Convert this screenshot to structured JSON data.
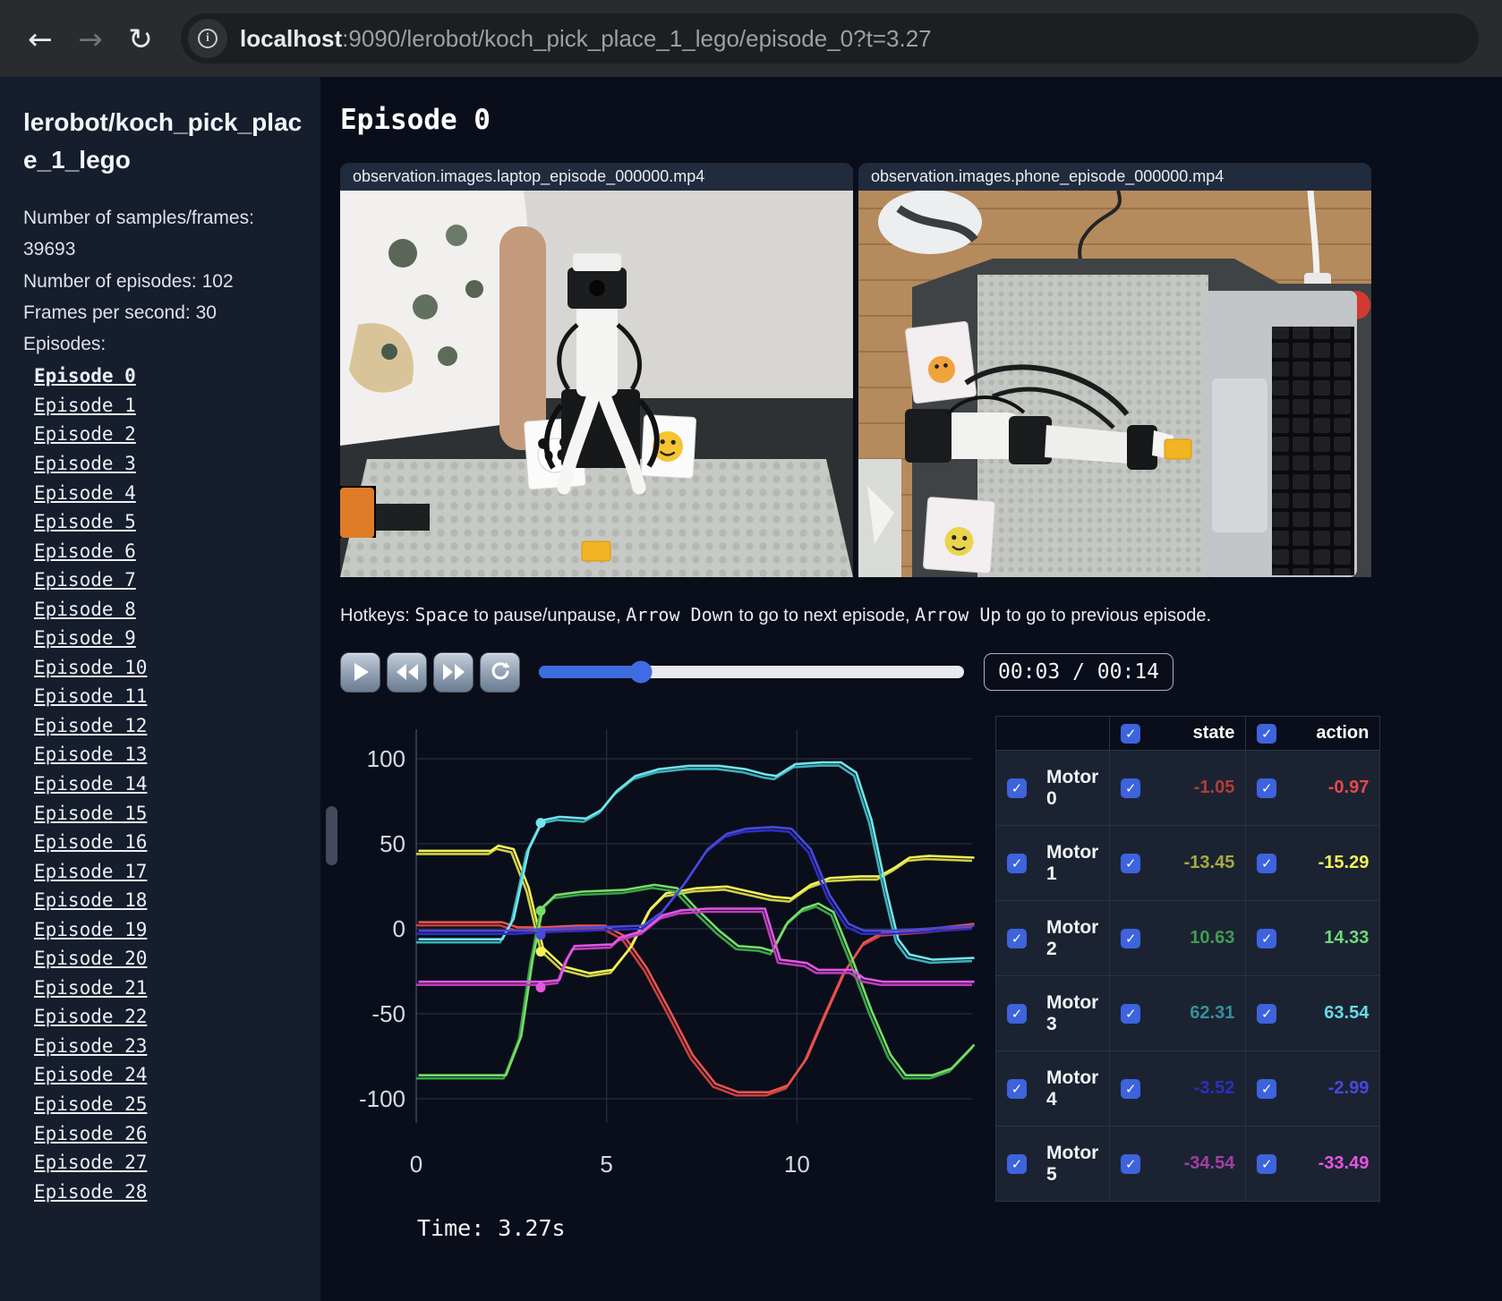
{
  "browser": {
    "url_host": "localhost",
    "url_rest": ":9090/lerobot/koch_pick_place_1_lego/episode_0?t=3.27",
    "back_glyph": "←",
    "forward_glyph": "→",
    "reload_glyph": "↻",
    "info_glyph": "i"
  },
  "sidebar": {
    "title": "lerobot/koch_pick_place_1_lego",
    "stats": [
      "Number of samples/frames: 39693",
      "Number of episodes: 102",
      "Frames per second: 30"
    ],
    "episodes_label": "Episodes:",
    "active_episode": "Episode 0",
    "episodes": [
      "Episode 0",
      "Episode 1",
      "Episode 2",
      "Episode 3",
      "Episode 4",
      "Episode 5",
      "Episode 6",
      "Episode 7",
      "Episode 8",
      "Episode 9",
      "Episode 10",
      "Episode 11",
      "Episode 12",
      "Episode 13",
      "Episode 14",
      "Episode 15",
      "Episode 16",
      "Episode 17",
      "Episode 18",
      "Episode 19",
      "Episode 20",
      "Episode 21",
      "Episode 22",
      "Episode 23",
      "Episode 24",
      "Episode 25",
      "Episode 26",
      "Episode 27",
      "Episode 28"
    ]
  },
  "main": {
    "title": "Episode 0",
    "videos": [
      {
        "label": "observation.images.laptop_episode_000000.mp4"
      },
      {
        "label": "observation.images.phone_episode_000000.mp4"
      }
    ],
    "hotkeys": {
      "prefix": "Hotkeys: ",
      "space": "Space",
      "mid1": " to pause/unpause, ",
      "arrow_down": "Arrow Down",
      "mid2": " to go to next episode, ",
      "arrow_up": "Arrow Up",
      "suffix": " to go to previous episode."
    },
    "controls": {
      "time_display": "00:03 / 00:14",
      "progress_pct": 24
    },
    "time_label": "Time: 3.27s"
  },
  "motor_table": {
    "columns": [
      "state",
      "action"
    ],
    "rows": [
      {
        "name": "Motor 0",
        "state": "-1.05",
        "action": "-0.97",
        "state_color": "#b13d3a",
        "action_color": "#e5484d"
      },
      {
        "name": "Motor 1",
        "state": "-13.45",
        "action": "-15.29",
        "state_color": "#aaaa3f",
        "action_color": "#f2f258"
      },
      {
        "name": "Motor 2",
        "state": "10.63",
        "action": "14.33",
        "state_color": "#3f9e4d",
        "action_color": "#6fd97a"
      },
      {
        "name": "Motor 3",
        "state": "62.31",
        "action": "63.54",
        "state_color": "#35919b",
        "action_color": "#65dbe4"
      },
      {
        "name": "Motor 4",
        "state": "-3.52",
        "action": "-2.99",
        "state_color": "#2e2ebe",
        "action_color": "#4848dd"
      },
      {
        "name": "Motor 5",
        "state": "-34.54",
        "action": "-33.49",
        "state_color": "#a23fa2",
        "action_color": "#e455e4"
      }
    ]
  },
  "chart_data": {
    "type": "line",
    "title": "",
    "xlabel": "",
    "ylabel": "",
    "x_ticks": [
      0,
      5,
      10
    ],
    "y_ticks": [
      100,
      50,
      0,
      -50,
      -100
    ],
    "xlim": [
      0,
      14.6
    ],
    "ylim": [
      -115,
      115
    ],
    "grid": true,
    "current_time": 3.27,
    "legend_position": "none",
    "note": "Each motor has two closely-tracking lines: state (dim) and action (bright). Dot marks value at current time 3.27s.",
    "series": [
      {
        "name": "Motor 0",
        "state_color": "#c9403c",
        "action_color": "#e8534e",
        "dot": [
          3.27,
          -1.05
        ],
        "points": [
          [
            0,
            2
          ],
          [
            2.2,
            2
          ],
          [
            2.6,
            -1
          ],
          [
            3.27,
            -1
          ],
          [
            4.2,
            0
          ],
          [
            4.9,
            0
          ],
          [
            5.4,
            -6
          ],
          [
            6.0,
            -25
          ],
          [
            6.6,
            -50
          ],
          [
            7.2,
            -76
          ],
          [
            7.8,
            -93
          ],
          [
            8.4,
            -98
          ],
          [
            9.2,
            -98
          ],
          [
            9.7,
            -94
          ],
          [
            10.2,
            -78
          ],
          [
            10.7,
            -52
          ],
          [
            11.2,
            -27
          ],
          [
            11.7,
            -10
          ],
          [
            12.2,
            -4
          ],
          [
            12.8,
            -3
          ],
          [
            13.4,
            -2
          ],
          [
            14.6,
            1
          ]
        ]
      },
      {
        "name": "Motor 1",
        "state_color": "#cfcf45",
        "action_color": "#f2f258",
        "dot": [
          3.27,
          -13.45
        ],
        "points": [
          [
            0,
            44
          ],
          [
            1.9,
            44
          ],
          [
            2.1,
            47
          ],
          [
            2.5,
            45
          ],
          [
            2.9,
            22
          ],
          [
            3.27,
            -13
          ],
          [
            3.8,
            -24
          ],
          [
            4.5,
            -28
          ],
          [
            5.1,
            -26
          ],
          [
            5.6,
            -12
          ],
          [
            6.1,
            10
          ],
          [
            6.5,
            19
          ],
          [
            7.3,
            22
          ],
          [
            8.1,
            23
          ],
          [
            8.7,
            20
          ],
          [
            9.3,
            17
          ],
          [
            9.8,
            16
          ],
          [
            10.3,
            24
          ],
          [
            10.8,
            28
          ],
          [
            11.6,
            29
          ],
          [
            12.1,
            29
          ],
          [
            12.5,
            34
          ],
          [
            12.9,
            40
          ],
          [
            13.4,
            41
          ],
          [
            14.6,
            40
          ]
        ]
      },
      {
        "name": "Motor 2",
        "state_color": "#3aa24a",
        "action_color": "#77dd66",
        "dot": [
          3.27,
          10.63
        ],
        "points": [
          [
            0,
            -88
          ],
          [
            2.3,
            -88
          ],
          [
            2.7,
            -65
          ],
          [
            3.0,
            -20
          ],
          [
            3.27,
            11
          ],
          [
            3.6,
            18
          ],
          [
            4.3,
            20
          ],
          [
            5.4,
            21
          ],
          [
            6.2,
            24
          ],
          [
            6.8,
            22
          ],
          [
            7.3,
            10
          ],
          [
            7.9,
            -3
          ],
          [
            8.4,
            -12
          ],
          [
            9.0,
            -13
          ],
          [
            9.3,
            -15
          ],
          [
            9.7,
            2
          ],
          [
            10.1,
            10
          ],
          [
            10.5,
            13
          ],
          [
            10.9,
            8
          ],
          [
            11.4,
            -20
          ],
          [
            11.9,
            -50
          ],
          [
            12.4,
            -76
          ],
          [
            12.8,
            -88
          ],
          [
            13.5,
            -88
          ],
          [
            14.0,
            -84
          ],
          [
            14.6,
            -70
          ]
        ]
      },
      {
        "name": "Motor 3",
        "state_color": "#3ab0bb",
        "action_color": "#72e4ec",
        "dot": [
          3.27,
          62.31
        ],
        "points": [
          [
            0,
            -8
          ],
          [
            2.2,
            -8
          ],
          [
            2.5,
            4
          ],
          [
            2.9,
            45
          ],
          [
            3.27,
            62
          ],
          [
            3.7,
            64
          ],
          [
            4.4,
            63
          ],
          [
            4.8,
            68
          ],
          [
            5.2,
            79
          ],
          [
            5.7,
            88
          ],
          [
            6.3,
            92
          ],
          [
            7.1,
            94
          ],
          [
            7.9,
            94
          ],
          [
            8.6,
            92
          ],
          [
            9.1,
            89
          ],
          [
            9.4,
            88
          ],
          [
            9.9,
            95
          ],
          [
            10.6,
            96
          ],
          [
            11.1,
            96
          ],
          [
            11.5,
            90
          ],
          [
            11.9,
            62
          ],
          [
            12.3,
            20
          ],
          [
            12.6,
            -8
          ],
          [
            12.9,
            -17
          ],
          [
            13.5,
            -20
          ],
          [
            14.6,
            -19
          ]
        ]
      },
      {
        "name": "Motor 4",
        "state_color": "#2d2dc4",
        "action_color": "#4848dd",
        "dot": [
          3.27,
          -3.52
        ],
        "points": [
          [
            0,
            -3
          ],
          [
            2.6,
            -3
          ],
          [
            3.27,
            -2
          ],
          [
            4.6,
            -1
          ],
          [
            5.9,
            0
          ],
          [
            6.4,
            8
          ],
          [
            7.0,
            25
          ],
          [
            7.6,
            45
          ],
          [
            8.1,
            54
          ],
          [
            8.6,
            57
          ],
          [
            9.3,
            58
          ],
          [
            9.8,
            57
          ],
          [
            10.3,
            45
          ],
          [
            10.8,
            18
          ],
          [
            11.3,
            1
          ],
          [
            11.7,
            -3
          ],
          [
            12.4,
            -3
          ],
          [
            13.2,
            -2
          ],
          [
            14.6,
            0
          ]
        ]
      },
      {
        "name": "Motor 5",
        "state_color": "#bb3dbb",
        "action_color": "#e455e4",
        "dot": [
          3.27,
          -34.54
        ],
        "points": [
          [
            0,
            -33
          ],
          [
            3.3,
            -33
          ],
          [
            3.7,
            -32
          ],
          [
            3.9,
            -20
          ],
          [
            4.1,
            -12
          ],
          [
            5.1,
            -11
          ],
          [
            5.3,
            -7
          ],
          [
            5.9,
            -3
          ],
          [
            6.4,
            6
          ],
          [
            6.9,
            9
          ],
          [
            7.6,
            10
          ],
          [
            8.6,
            10
          ],
          [
            9.1,
            10
          ],
          [
            9.3,
            -5
          ],
          [
            9.5,
            -20
          ],
          [
            10.2,
            -22
          ],
          [
            10.5,
            -26
          ],
          [
            11.4,
            -26
          ],
          [
            11.7,
            -31
          ],
          [
            12.2,
            -33
          ],
          [
            14.6,
            -33
          ]
        ]
      }
    ]
  }
}
